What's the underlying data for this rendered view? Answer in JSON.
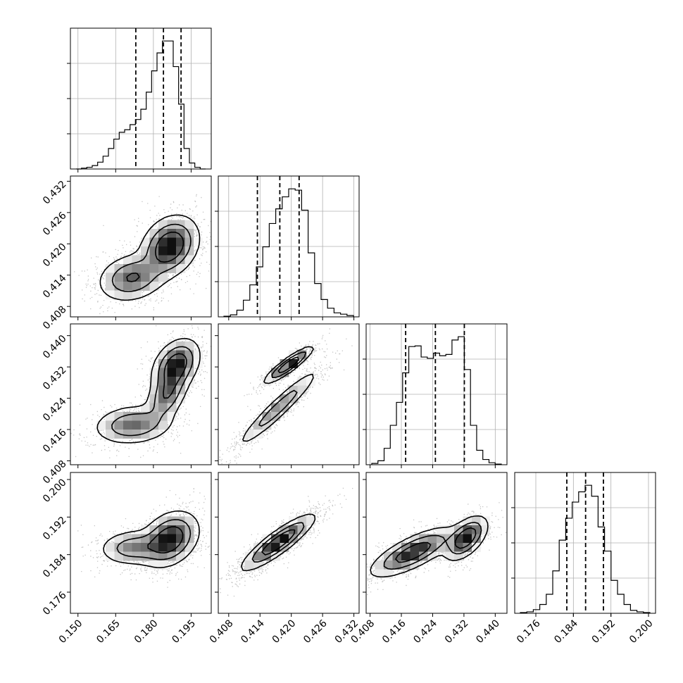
{
  "chart_data": {
    "type": "corner",
    "grid": true,
    "variables": [
      {
        "id": "p0",
        "range": [
          0.147,
          0.203
        ],
        "ticks": [
          0.15,
          0.165,
          0.18,
          0.195
        ],
        "tick_labels": [
          "0.150",
          "0.165",
          "0.180",
          "0.195"
        ],
        "quantiles": [
          0.173,
          0.184,
          0.191
        ]
      },
      {
        "id": "p1",
        "range": [
          0.406,
          0.433
        ],
        "ticks": [
          0.408,
          0.414,
          0.42,
          0.426,
          0.432
        ],
        "tick_labels": [
          "0.408",
          "0.414",
          "0.420",
          "0.426",
          "0.432"
        ],
        "quantiles": [
          0.4135,
          0.4178,
          0.4215
        ]
      },
      {
        "id": "p2",
        "range": [
          0.407,
          0.443
        ],
        "ticks": [
          0.408,
          0.416,
          0.424,
          0.432,
          0.44
        ],
        "tick_labels": [
          "0.408",
          "0.416",
          "0.424",
          "0.432",
          "0.440"
        ],
        "quantiles": [
          0.4171,
          0.4247,
          0.4321
        ]
      },
      {
        "id": "p3",
        "range": [
          0.1715,
          0.2015
        ],
        "ticks": [
          0.176,
          0.184,
          0.192,
          0.2
        ],
        "tick_labels": [
          "0.176",
          "0.184",
          "0.192",
          "0.200"
        ],
        "quantiles": [
          0.1826,
          0.1866,
          0.1904
        ]
      }
    ],
    "histograms": [
      {
        "var": "p0",
        "counts": [
          0,
          1,
          2,
          4,
          8,
          15,
          24,
          35,
          43,
          46,
          52,
          58,
          70,
          90,
          115,
          136,
          150,
          150,
          120,
          76,
          24,
          7,
          2,
          0
        ]
      },
      {
        "var": "p1",
        "counts": [
          1,
          3,
          10,
          25,
          48,
          75,
          105,
          140,
          162,
          180,
          192,
          190,
          160,
          96,
          50,
          26,
          13,
          6,
          4,
          2
        ]
      },
      {
        "var": "p2",
        "counts": [
          2,
          6,
          25,
          60,
          95,
          140,
          180,
          181,
          164,
          162,
          170,
          166,
          168,
          190,
          195,
          145,
          60,
          22,
          8,
          3,
          1
        ]
      },
      {
        "var": "p3",
        "counts": [
          1,
          2,
          5,
          12,
          26,
          58,
          100,
          130,
          152,
          166,
          175,
          160,
          118,
          85,
          45,
          26,
          12,
          4,
          2,
          1
        ]
      }
    ],
    "pairs": [
      {
        "x": "p0",
        "y": "p1",
        "modes": [
          {
            "mx": 0.1865,
            "my": 0.4195,
            "sx": 0.0055,
            "sy": 0.0028,
            "rho": 0.25,
            "w": 0.62
          },
          {
            "mx": 0.1715,
            "my": 0.4135,
            "sx": 0.0065,
            "sy": 0.0022,
            "rho": 0.2,
            "w": 0.38
          }
        ]
      },
      {
        "x": "p0",
        "y": "p2",
        "modes": [
          {
            "mx": 0.189,
            "my": 0.4325,
            "sx": 0.0045,
            "sy": 0.0032,
            "rho": 0.35,
            "w": 0.4
          },
          {
            "mx": 0.1855,
            "my": 0.425,
            "sx": 0.004,
            "sy": 0.0035,
            "rho": 0.45,
            "w": 0.25
          },
          {
            "mx": 0.172,
            "my": 0.4172,
            "sx": 0.0075,
            "sy": 0.0024,
            "rho": 0.15,
            "w": 0.35
          }
        ]
      },
      {
        "x": "p1",
        "y": "p2",
        "modes": [
          {
            "mx": 0.4195,
            "my": 0.4325,
            "sx": 0.0022,
            "sy": 0.0022,
            "rho": 0.9,
            "w": 0.42
          },
          {
            "mx": 0.4175,
            "my": 0.4215,
            "sx": 0.0037,
            "sy": 0.0047,
            "rho": 0.95,
            "w": 0.58
          }
        ]
      },
      {
        "x": "p0",
        "y": "p3",
        "modes": [
          {
            "mx": 0.1865,
            "my": 0.1873,
            "sx": 0.0055,
            "sy": 0.0028,
            "rho": 0.3,
            "w": 0.7
          },
          {
            "mx": 0.172,
            "my": 0.1855,
            "sx": 0.0065,
            "sy": 0.0018,
            "rho": 0.1,
            "w": 0.3
          }
        ]
      },
      {
        "x": "p1",
        "y": "p3",
        "modes": [
          {
            "mx": 0.4175,
            "my": 0.1866,
            "sx": 0.0033,
            "sy": 0.0028,
            "rho": 0.88,
            "w": 1.0
          }
        ]
      },
      {
        "x": "p2",
        "y": "p3",
        "modes": [
          {
            "mx": 0.4325,
            "my": 0.1875,
            "sx": 0.0026,
            "sy": 0.0022,
            "rho": 0.55,
            "w": 0.38
          },
          {
            "mx": 0.419,
            "my": 0.1845,
            "sx": 0.0052,
            "sy": 0.0025,
            "rho": 0.75,
            "w": 0.62
          }
        ]
      }
    ]
  }
}
